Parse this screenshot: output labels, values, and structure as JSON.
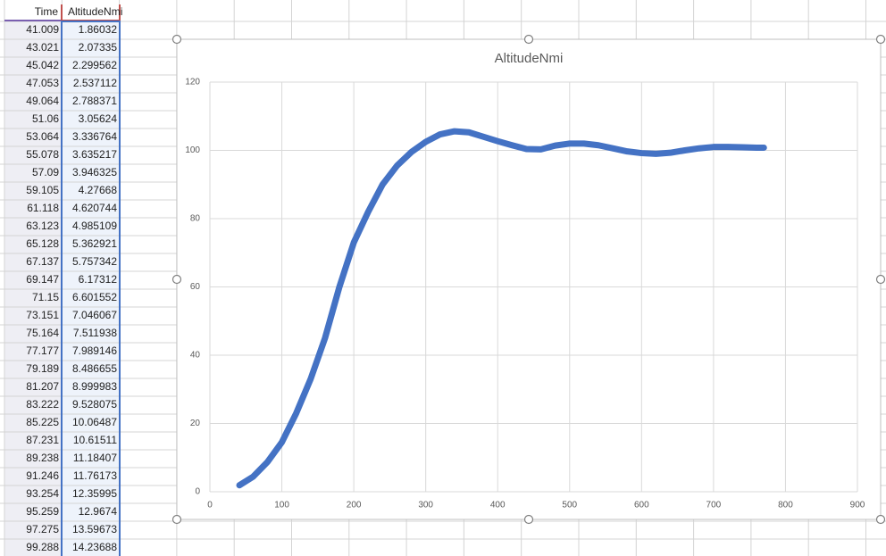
{
  "table": {
    "headers": [
      "Time",
      "AltitudeNmi"
    ],
    "rows": [
      [
        "41.009",
        "1.86032"
      ],
      [
        "43.021",
        "2.07335"
      ],
      [
        "45.042",
        "2.299562"
      ],
      [
        "47.053",
        "2.537112"
      ],
      [
        "49.064",
        "2.788371"
      ],
      [
        "51.06",
        "3.05624"
      ],
      [
        "53.064",
        "3.336764"
      ],
      [
        "55.078",
        "3.635217"
      ],
      [
        "57.09",
        "3.946325"
      ],
      [
        "59.105",
        "4.27668"
      ],
      [
        "61.118",
        "4.620744"
      ],
      [
        "63.123",
        "4.985109"
      ],
      [
        "65.128",
        "5.362921"
      ],
      [
        "67.137",
        "5.757342"
      ],
      [
        "69.147",
        "6.17312"
      ],
      [
        "71.15",
        "6.601552"
      ],
      [
        "73.151",
        "7.046067"
      ],
      [
        "75.164",
        "7.511938"
      ],
      [
        "77.177",
        "7.989146"
      ],
      [
        "79.189",
        "8.486655"
      ],
      [
        "81.207",
        "8.999983"
      ],
      [
        "83.222",
        "9.528075"
      ],
      [
        "85.225",
        "10.06487"
      ],
      [
        "87.231",
        "10.61511"
      ],
      [
        "89.238",
        "11.18407"
      ],
      [
        "91.246",
        "11.76173"
      ],
      [
        "93.254",
        "12.35995"
      ],
      [
        "95.259",
        "12.9674"
      ],
      [
        "97.275",
        "13.59673"
      ],
      [
        "99.288",
        "14.23688"
      ]
    ]
  },
  "chart_data": {
    "type": "line",
    "title": "AltitudeNmi",
    "x": [
      41,
      60,
      80,
      100,
      120,
      140,
      160,
      180,
      200,
      220,
      240,
      260,
      280,
      300,
      320,
      340,
      360,
      380,
      400,
      420,
      440,
      460,
      480,
      500,
      520,
      540,
      560,
      580,
      600,
      620,
      640,
      660,
      680,
      700,
      720,
      740,
      760,
      770
    ],
    "series": [
      {
        "name": "AltitudeNmi",
        "color": "#4472c4",
        "values": [
          1.9,
          4.4,
          8.7,
          14.5,
          23,
          33,
          45,
          60,
          73,
          82,
          90,
          95.5,
          99.5,
          102.5,
          104.7,
          105.6,
          105.3,
          104,
          102.7,
          101.5,
          100.4,
          100.3,
          101.4,
          102,
          102,
          101.5,
          100.6,
          99.7,
          99.2,
          99,
          99.3,
          100,
          100.6,
          101,
          101,
          100.9,
          100.8,
          100.8
        ]
      }
    ],
    "xlim": [
      0,
      900
    ],
    "xticks": [
      0,
      100,
      200,
      300,
      400,
      500,
      600,
      700,
      800,
      900
    ],
    "ylim": [
      0,
      120
    ],
    "yticks": [
      0,
      20,
      40,
      60,
      80,
      100,
      120
    ],
    "grid": true
  }
}
